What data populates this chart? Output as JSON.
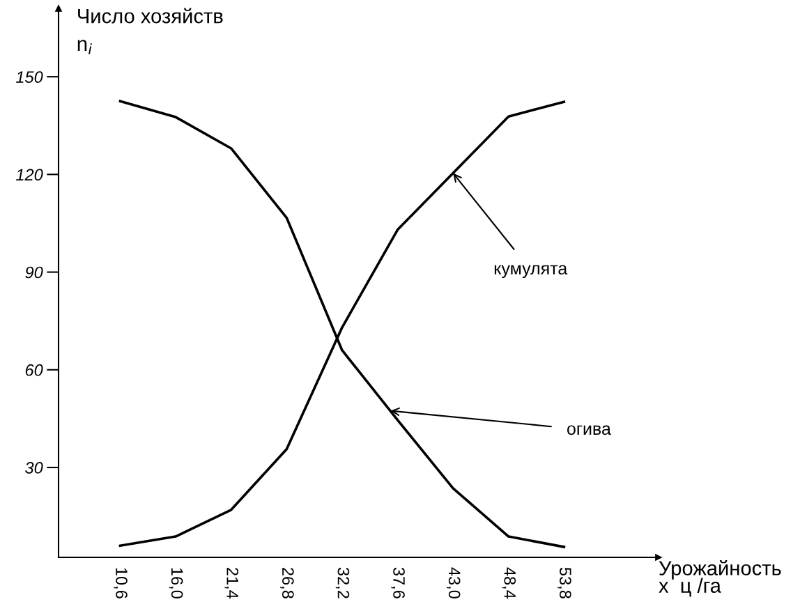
{
  "chart_data": {
    "type": "line",
    "ylabel": "Число хозяйств\nn$_{i}$",
    "xlabel": "Урожайность\nx  ц /га",
    "x": [
      10.6,
      16.0,
      21.4,
      26.8,
      32.2,
      37.6,
      43.0,
      48.4,
      53.8
    ],
    "series": [
      {
        "color": "#000000",
        "values": [
          142.5,
          137.6,
          128,
          106.7,
          66,
          44.6,
          23.6,
          8.8,
          5.6
        ]
      },
      {
        "color": "#000000",
        "values": [
          6,
          8.8,
          17,
          35.6,
          73,
          103,
          120.4,
          137.8,
          142.3
        ]
      }
    ],
    "xlim": [
      4.6,
      63
    ],
    "ylim": [
      2.4,
      171
    ],
    "xticks": [
      {
        "value": 10.6,
        "label": "10,6"
      },
      {
        "value": 16.0,
        "label": "16,0"
      },
      {
        "value": 21.4,
        "label": "21,4"
      },
      {
        "value": 26.8,
        "label": "26,8"
      },
      {
        "value": 32.2,
        "label": "32,2"
      },
      {
        "value": 37.6,
        "label": "37,6"
      },
      {
        "value": 43.0,
        "label": "43,0"
      },
      {
        "value": 48.4,
        "label": "48,4"
      },
      {
        "value": 53.8,
        "label": "53,8"
      }
    ],
    "yticks": [
      30,
      60,
      90,
      120,
      150
    ],
    "annotations": [
      {
        "text": "кумулята",
        "x": 43.0,
        "y": 120.4
      },
      {
        "text": "огива",
        "x": 36.9,
        "y": 47.4
      }
    ],
    "grid": false,
    "legend": false,
    "marker": "none",
    "line_style": "solid"
  }
}
